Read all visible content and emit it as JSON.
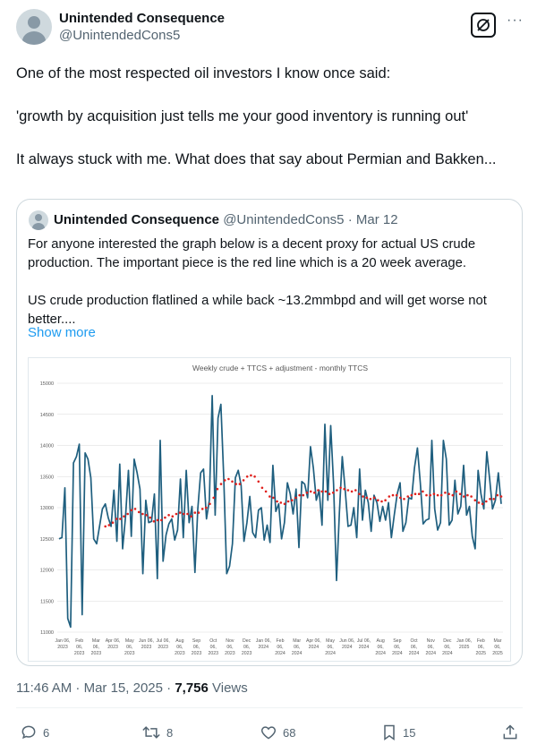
{
  "author": {
    "name": "Unintended Consequence",
    "handle": "@UnintendedCons5"
  },
  "tweet": {
    "paragraphs": [
      "One of the most respected oil investors I know once said:",
      "'growth by acquisition just tells me your good inventory is running out'",
      "It always stuck with me.  What does that say about Permian and Bakken..."
    ]
  },
  "quote": {
    "name": "Unintended Consequence",
    "handle": "@UnintendedCons5",
    "date": "· Mar 12",
    "paragraphs": [
      "For anyone interested the graph below is a decent proxy for actual US crude production.  The important piece is the red line which is a 20 week average.",
      "US crude production flatlined a while back ~13.2mmbpd and will get worse not better...."
    ],
    "show_more": "Show more"
  },
  "chart_data": {
    "type": "line",
    "title": "Weekly crude + TTCS + adjustment - monthly TTCS",
    "ylim": [
      11000,
      15000
    ],
    "yticks": [
      "11000",
      "11500",
      "12000",
      "12500",
      "13000",
      "13500",
      "14000",
      "14500",
      "15000"
    ],
    "xticks": [
      [
        "Jan 06,",
        "2023"
      ],
      [
        "Feb",
        "06,",
        "2023"
      ],
      [
        "Mar",
        "06,",
        "2023"
      ],
      [
        "Apr 06,",
        "2023"
      ],
      [
        "May",
        "06,",
        "2023"
      ],
      [
        "Jun 06,",
        "2023"
      ],
      [
        "Jul 06,",
        "2023"
      ],
      [
        "Aug",
        "06,",
        "2023"
      ],
      [
        "Sep",
        "06,",
        "2023"
      ],
      [
        "Oct",
        "06,",
        "2023"
      ],
      [
        "Nov",
        "06,",
        "2023"
      ],
      [
        "Dec",
        "06,",
        "2023"
      ],
      [
        "Jan 06,",
        "2024"
      ],
      [
        "Feb",
        "06,",
        "2024"
      ],
      [
        "Mar",
        "06,",
        "2024"
      ],
      [
        "Apr 06,",
        "2024"
      ],
      [
        "May",
        "06,",
        "2024"
      ],
      [
        "Jun 06,",
        "2024"
      ],
      [
        "Jul 06,",
        "2024"
      ],
      [
        "Aug",
        "06,",
        "2024"
      ],
      [
        "Sep",
        "06,",
        "2024"
      ],
      [
        "Oct",
        "06,",
        "2024"
      ],
      [
        "Nov",
        "06,",
        "2024"
      ],
      [
        "Dec",
        "06,",
        "2024"
      ],
      [
        "Jan 06,",
        "2025"
      ],
      [
        "Feb",
        "06,",
        "2025"
      ],
      [
        "Mar",
        "06,",
        "2025"
      ]
    ],
    "series": [
      {
        "values": [
          12500,
          12520,
          13320,
          11220,
          11080,
          13720,
          13820,
          14020,
          11280,
          13880,
          13780,
          13480,
          12500,
          12420,
          12700,
          12980,
          13060,
          12840,
          12700,
          13280,
          12460,
          13700,
          12340,
          12860,
          13600,
          12540,
          13780,
          13560,
          13300,
          11940,
          13120,
          12760,
          12780,
          13220,
          11860,
          14080,
          12140,
          12560,
          12740,
          12820,
          12480,
          12640,
          13460,
          12520,
          13600,
          12760,
          13020,
          11960,
          12980,
          13560,
          13620,
          12820,
          13120,
          14800,
          12880,
          14440,
          14660,
          13480,
          11940,
          12060,
          12420,
          13480,
          13600,
          13360,
          12460,
          12760,
          13180,
          12600,
          12520,
          12960,
          13000,
          12480,
          12720,
          12440,
          13680,
          12940,
          13060,
          12500,
          12760,
          13400,
          13220,
          12900,
          13300,
          12360,
          13420,
          13380,
          13160,
          13980,
          13640,
          13120,
          13280,
          12720,
          14340,
          13120,
          14320,
          13380,
          11830,
          12920,
          13820,
          13300,
          12700,
          12720,
          13000,
          12520,
          13620,
          12800,
          13280,
          13080,
          12620,
          13200,
          13080,
          12780,
          13020,
          12800,
          13080,
          12520,
          12880,
          13220,
          13400,
          12620,
          12760,
          13160,
          13140,
          13640,
          13960,
          13400,
          12740,
          12800,
          12820,
          14080,
          12980,
          12640,
          12760,
          14080,
          13780,
          12720,
          12800,
          13440,
          12900,
          13020,
          13680,
          12880,
          13020,
          12540,
          12340,
          13600,
          13220,
          12980,
          13900,
          13460,
          12980,
          13120,
          13560,
          13060
        ]
      },
      {
        "values": [
          12700,
          12720,
          12760,
          12820,
          12820,
          12860,
          12900,
          12960,
          12980,
          12930,
          12900,
          12880,
          12840,
          12780,
          12800,
          12800,
          12840,
          12880,
          12860,
          12900,
          12920,
          12900,
          12900,
          12860,
          12920,
          12920,
          12980,
          13000,
          13060,
          13160,
          13300,
          13380,
          13440,
          13460,
          13420,
          13380,
          13380,
          13440,
          13500,
          13520,
          13500,
          13420,
          13320,
          13260,
          13180,
          13160,
          13100,
          13080,
          13060,
          13100,
          13120,
          13160,
          13200,
          13200,
          13240,
          13260,
          13240,
          13280,
          13260,
          13260,
          13220,
          13240,
          13280,
          13320,
          13300,
          13280,
          13260,
          13280,
          13220,
          13180,
          13160,
          13140,
          13160,
          13120,
          13100,
          13120,
          13180,
          13200,
          13200,
          13160,
          13140,
          13180,
          13200,
          13220,
          13220,
          13260,
          13200,
          13200,
          13220,
          13200,
          13200,
          13240,
          13220,
          13200,
          13260,
          13220,
          13180,
          13200,
          13180,
          13120,
          13080,
          13060,
          13100,
          13140,
          13140,
          13200,
          13180
        ]
      }
    ]
  },
  "meta": {
    "time": "11:46 AM · Mar 15, 2025 · ",
    "views_count": "7,756",
    "views_label": " Views"
  },
  "actions": {
    "replies": "6",
    "reposts": "8",
    "likes": "68",
    "bookmarks": "15"
  },
  "colors": {
    "line": "#1f5f7f",
    "average": "#e0201c",
    "link": "#1d9bf0"
  }
}
